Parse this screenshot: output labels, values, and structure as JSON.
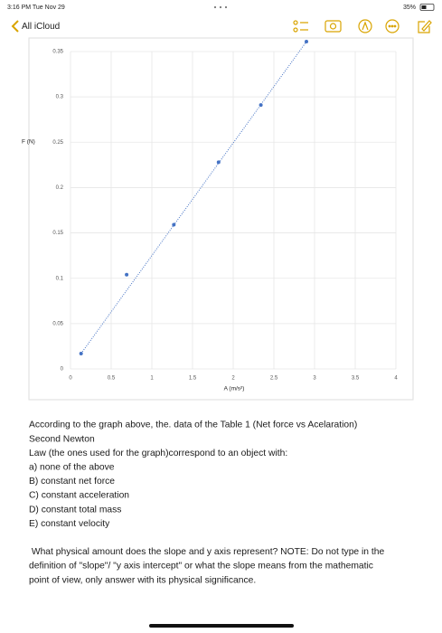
{
  "status_bar": {
    "time": "3:16 PM  Tue Nov 29",
    "battery": "35%"
  },
  "toolbar": {
    "back": "All iCloud"
  },
  "chart_data": {
    "type": "scatter",
    "y_label": "F (N)",
    "x_label": "A (m/s²)",
    "x": [
      0.13,
      0.69,
      1.27,
      1.82,
      2.34,
      2.9
    ],
    "values": [
      0.017,
      0.104,
      0.159,
      0.228,
      0.291,
      0.361
    ],
    "color": "#4472c4",
    "xlim": [
      0,
      4
    ],
    "xticks": [
      0,
      0.5,
      1,
      1.5,
      2,
      2.5,
      3,
      3.5,
      4
    ],
    "ylim": [
      0,
      0.35
    ],
    "yticks": [
      0,
      0.05,
      0.1,
      0.15,
      0.2,
      0.25,
      0.3,
      0.35
    ],
    "grid": true,
    "trendline": true
  },
  "question": {
    "paragraphs": [
      [
        "According to the graph above, the. data of the Table 1 (Net force vs Acelaration)",
        "Second Newton",
        "Law (the ones used for the graph)correspond to an object with:",
        "a) none of the above",
        "B) constant net force",
        "C) constant acceleration",
        "D) constant total mass",
        "E) constant velocity"
      ],
      [
        " What physical amount does the slope and y axis represent? NOTE: Do not type in the",
        "definition of \"slope\"/ \"y axis intercept\" or what the slope means from the mathematic",
        "point of view, only answer with its physical significance."
      ]
    ]
  }
}
